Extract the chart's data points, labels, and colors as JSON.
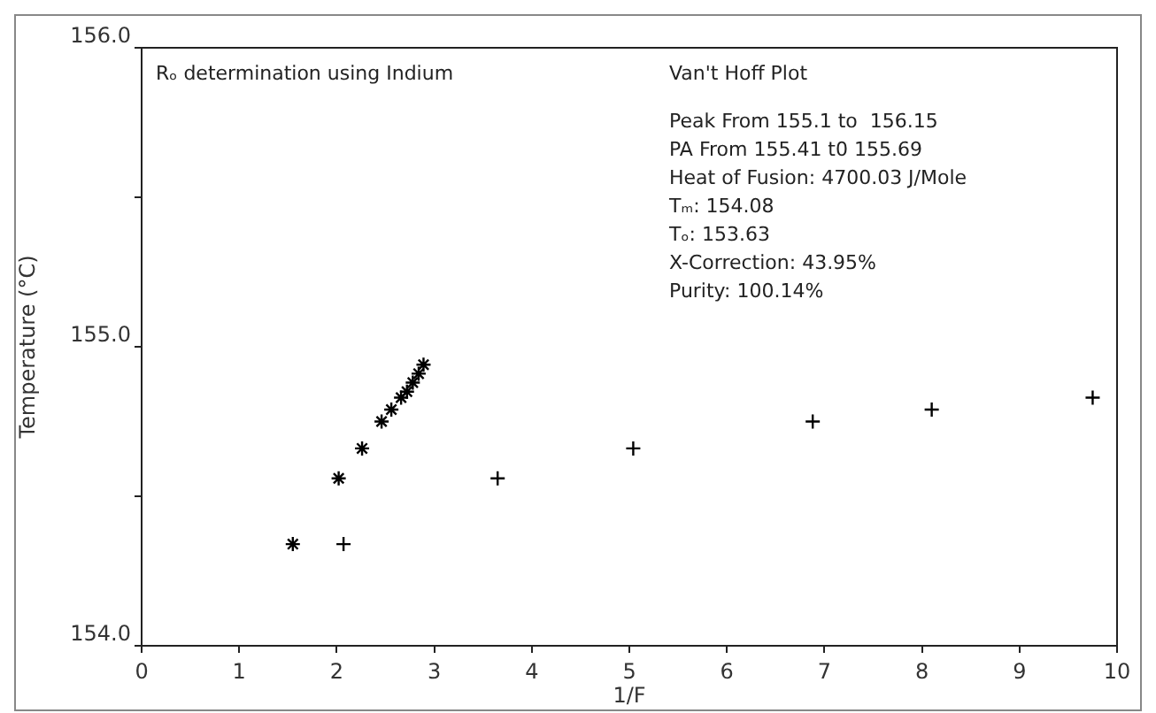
{
  "chart_data": {
    "type": "scatter",
    "xlabel": "1/F",
    "ylabel": "Temperature (°C)",
    "xlim": [
      0,
      10
    ],
    "xticks": [
      0,
      1,
      2,
      3,
      4,
      5,
      6,
      7,
      8,
      9,
      10
    ],
    "ylim": [
      154,
      156
    ],
    "yticks": [
      {
        "value": 154,
        "label": "154.0"
      },
      {
        "value": 154.5,
        "label": null
      },
      {
        "value": 155,
        "label": "155.0"
      },
      {
        "value": 155.5,
        "label": null
      },
      {
        "value": 156,
        "label": "156.0"
      }
    ],
    "grid": false,
    "legend": false,
    "series": [
      {
        "color": "#000000",
        "x": [
          1.55,
          2.02,
          2.26,
          2.46,
          2.56,
          2.66,
          2.72,
          2.78,
          2.84,
          2.89
        ],
        "values": [
          154.34,
          154.56,
          154.66,
          154.75,
          154.79,
          154.83,
          154.85,
          154.88,
          154.91,
          154.94
        ]
      },
      {
        "color": "#000000",
        "marker": "cross",
        "x": [
          2.07,
          3.65,
          5.04,
          6.88,
          8.1,
          9.75
        ],
        "values": [
          154.34,
          154.56,
          154.66,
          154.75,
          154.79,
          154.83
        ]
      }
    ],
    "annotations": [
      "Rₒ determination using Indium",
      "Van't Hoff Plot",
      "Peak From 155.1 to  156.15",
      "PA From 155.41 t0 155.69",
      "Heat of Fusion: 4700.03 J/Mole",
      "Tₘ: 154.08",
      "Tₒ: 153.63",
      "X-Correction: 43.95%",
      "Purity: 100.14%"
    ]
  }
}
